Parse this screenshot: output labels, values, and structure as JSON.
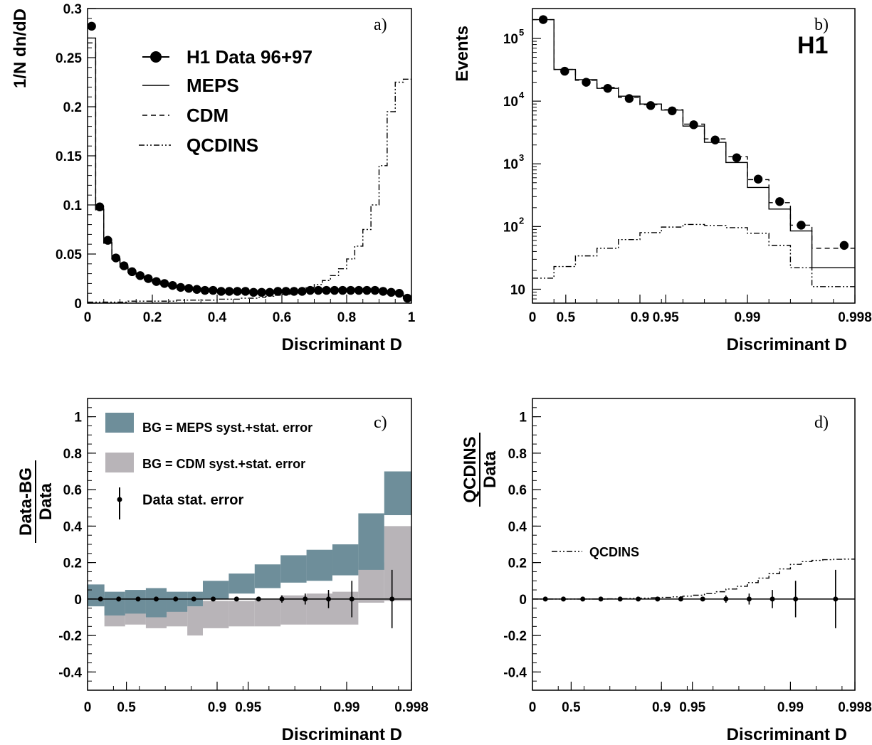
{
  "chart_data": [
    {
      "panel": "a)",
      "type": "line",
      "xlabel": "Discriminant D",
      "ylabel": "1/N dn/dD",
      "xlim": [
        0,
        1
      ],
      "ylim": [
        0,
        0.3
      ],
      "x_ticks": [
        "0",
        "0.2",
        "0.4",
        "0.6",
        "0.8",
        "1"
      ],
      "y_ticks": [
        "0",
        "0.05",
        "0.1",
        "0.15",
        "0.2",
        "0.25",
        "0.3"
      ],
      "legend": [
        "H1 Data 96+97",
        "MEPS",
        "CDM",
        "QCDINS"
      ],
      "legend_position": "top-left",
      "bin_width": 0.025,
      "series": [
        {
          "name": "H1 Data 96+97",
          "style": "points",
          "values": [
            0.282,
            0.098,
            0.064,
            0.046,
            0.038,
            0.032,
            0.028,
            0.025,
            0.022,
            0.02,
            0.018,
            0.016,
            0.015,
            0.014,
            0.013,
            0.013,
            0.012,
            0.012,
            0.012,
            0.012,
            0.011,
            0.011,
            0.011,
            0.012,
            0.012,
            0.012,
            0.012,
            0.013,
            0.013,
            0.013,
            0.013,
            0.013,
            0.013,
            0.013,
            0.013,
            0.013,
            0.012,
            0.011,
            0.01,
            0.005
          ]
        },
        {
          "name": "MEPS",
          "style": "solid",
          "values": [
            0.27,
            0.096,
            0.062,
            0.045,
            0.037,
            0.031,
            0.027,
            0.024,
            0.021,
            0.019,
            0.017,
            0.016,
            0.015,
            0.014,
            0.013,
            0.013,
            0.012,
            0.012,
            0.012,
            0.011,
            0.011,
            0.011,
            0.011,
            0.011,
            0.012,
            0.012,
            0.012,
            0.012,
            0.012,
            0.012,
            0.013,
            0.013,
            0.013,
            0.013,
            0.013,
            0.012,
            0.012,
            0.011,
            0.01,
            0.005
          ]
        },
        {
          "name": "CDM",
          "style": "dashed",
          "values": [
            0.265,
            0.095,
            0.061,
            0.045,
            0.037,
            0.031,
            0.027,
            0.024,
            0.021,
            0.019,
            0.017,
            0.016,
            0.015,
            0.014,
            0.013,
            0.013,
            0.012,
            0.012,
            0.011,
            0.011,
            0.011,
            0.011,
            0.011,
            0.011,
            0.011,
            0.012,
            0.012,
            0.012,
            0.012,
            0.012,
            0.012,
            0.013,
            0.013,
            0.013,
            0.013,
            0.012,
            0.012,
            0.011,
            0.01,
            0.005
          ]
        },
        {
          "name": "QCDINS",
          "style": "dash-dot",
          "values": [
            0.001,
            0.001,
            0.001,
            0.001,
            0.001,
            0.002,
            0.002,
            0.002,
            0.002,
            0.002,
            0.002,
            0.003,
            0.003,
            0.003,
            0.003,
            0.003,
            0.004,
            0.004,
            0.004,
            0.005,
            0.005,
            0.006,
            0.007,
            0.008,
            0.009,
            0.011,
            0.013,
            0.016,
            0.019,
            0.023,
            0.028,
            0.035,
            0.045,
            0.058,
            0.075,
            0.1,
            0.14,
            0.195,
            0.225,
            0.228
          ]
        }
      ]
    },
    {
      "panel": "b)",
      "type": "line",
      "logo": "H1",
      "xlabel": "Discriminant D",
      "ylabel": "Events",
      "y_scale": "log",
      "ylim": [
        6,
        300000
      ],
      "x_ticks": [
        "0",
        "0.5",
        "0.9",
        "0.95",
        "0.99",
        "0.998"
      ],
      "y_ticks": [
        "10",
        "10^2",
        "10^3",
        "10^4",
        "10^5"
      ],
      "n_bins": 15,
      "series": [
        {
          "name": "H1 Data 96+97",
          "style": "points",
          "values": [
            200000,
            30000,
            20000,
            16000,
            11000,
            8500,
            7000,
            4200,
            2400,
            1250,
            570,
            250,
            105,
            null,
            50
          ]
        },
        {
          "name": "MEPS",
          "style": "solid",
          "values": [
            200000,
            32000,
            22000,
            16000,
            12000,
            9000,
            7200,
            4000,
            2200,
            1050,
            420,
            190,
            85,
            22,
            22
          ]
        },
        {
          "name": "CDM",
          "style": "dashed",
          "values": [
            200000,
            32000,
            21500,
            16500,
            11500,
            8800,
            7300,
            4300,
            2500,
            1300,
            560,
            240,
            105,
            45,
            45
          ]
        },
        {
          "name": "QCDINS",
          "style": "dash-dot",
          "values": [
            15,
            23,
            34,
            45,
            62,
            80,
            98,
            108,
            104,
            96,
            78,
            50,
            22,
            11,
            11
          ]
        }
      ]
    },
    {
      "panel": "c)",
      "type": "area",
      "xlabel": "Discriminant D",
      "ylabel_num": "Data-BG",
      "ylabel_den": "Data",
      "ylim": [
        -0.5,
        1.1
      ],
      "x_ticks": [
        "0",
        "0.5",
        "0.9",
        "0.95",
        "0.99",
        "0.998"
      ],
      "y_ticks": [
        "-0.4",
        "-0.2",
        "0",
        "0.2",
        "0.4",
        "0.6",
        "0.8",
        "1"
      ],
      "band_colors": {
        "meps": "#6e8e9a",
        "cdm": "#b8b4b8"
      },
      "legend": [
        "BG = MEPS syst.+stat. error",
        "BG = CDM syst.+stat. error",
        "Data stat. error"
      ],
      "bins": [
        {
          "x0": 0.0,
          "x1": 0.65,
          "meps": [
            -0.04,
            0.08
          ],
          "cdm": [
            -0.02,
            0.03
          ]
        },
        {
          "x0": 0.65,
          "x1": 1.45,
          "meps": [
            -0.09,
            0.04
          ],
          "cdm": [
            -0.15,
            0.01
          ]
        },
        {
          "x0": 1.45,
          "x1": 2.25,
          "meps": [
            -0.08,
            0.05
          ],
          "cdm": [
            -0.14,
            0.0
          ]
        },
        {
          "x0": 2.25,
          "x1": 3.05,
          "meps": [
            -0.1,
            0.06
          ],
          "cdm": [
            -0.16,
            -0.01
          ]
        },
        {
          "x0": 3.05,
          "x1": 3.85,
          "meps": [
            -0.07,
            0.04
          ],
          "cdm": [
            -0.15,
            0.0
          ]
        },
        {
          "x0": 3.85,
          "x1": 4.45,
          "meps": [
            -0.04,
            0.04
          ],
          "cdm": [
            -0.2,
            -0.04
          ]
        },
        {
          "x0": 4.45,
          "x1": 5.45,
          "meps": [
            0.0,
            0.1
          ],
          "cdm": [
            -0.16,
            -0.01
          ]
        },
        {
          "x0": 5.45,
          "x1": 6.45,
          "meps": [
            0.03,
            0.14
          ],
          "cdm": [
            -0.15,
            -0.01
          ]
        },
        {
          "x0": 6.45,
          "x1": 7.45,
          "meps": [
            0.06,
            0.19
          ],
          "cdm": [
            -0.15,
            0.0
          ]
        },
        {
          "x0": 7.45,
          "x1": 8.45,
          "meps": [
            0.09,
            0.24
          ],
          "cdm": [
            -0.14,
            0.02
          ]
        },
        {
          "x0": 8.45,
          "x1": 9.45,
          "meps": [
            0.1,
            0.27
          ],
          "cdm": [
            -0.14,
            0.03
          ]
        },
        {
          "x0": 9.45,
          "x1": 10.45,
          "meps": [
            0.13,
            0.3
          ],
          "cdm": [
            -0.14,
            0.04
          ]
        },
        {
          "x0": 10.45,
          "x1": 11.45,
          "meps": [
            0.16,
            0.47
          ],
          "cdm": [
            -0.02,
            0.2
          ]
        },
        {
          "x0": 11.45,
          "x1": 12.5,
          "meps": [
            0.46,
            0.7
          ],
          "cdm": [
            -0.01,
            0.4
          ]
        }
      ],
      "points": [
        {
          "x": 0.5,
          "y": 0.0,
          "err": 0.0
        },
        {
          "x": 1.2,
          "y": 0.0,
          "err": 0.0
        },
        {
          "x": 1.95,
          "y": 0.0,
          "err": 0.0
        },
        {
          "x": 2.65,
          "y": 0.0,
          "err": 0.0
        },
        {
          "x": 3.4,
          "y": 0.0,
          "err": 0.0
        },
        {
          "x": 4.1,
          "y": 0.0,
          "err": 0.0
        },
        {
          "x": 4.85,
          "y": 0.0,
          "err": 0.0
        },
        {
          "x": 5.75,
          "y": 0.0,
          "err": 0.0
        },
        {
          "x": 6.6,
          "y": 0.0,
          "err": 0.01
        },
        {
          "x": 7.5,
          "y": 0.0,
          "err": 0.02
        },
        {
          "x": 8.4,
          "y": 0.0,
          "err": 0.03
        },
        {
          "x": 9.3,
          "y": 0.0,
          "err": 0.05
        },
        {
          "x": 10.2,
          "y": 0.0,
          "err": 0.1
        },
        {
          "x": 11.75,
          "y": 0.0,
          "err": 0.16
        }
      ]
    },
    {
      "panel": "d)",
      "type": "line",
      "xlabel": "Discriminant D",
      "ylabel_num": "QCDINS",
      "ylabel_den": "Data",
      "ylim": [
        -0.5,
        1.1
      ],
      "x_ticks": [
        "0",
        "0.5",
        "0.9",
        "0.95",
        "0.99",
        "0.998"
      ],
      "y_ticks": [
        "-0.4",
        "-0.2",
        "0",
        "0.2",
        "0.4",
        "0.6",
        "0.8",
        "1"
      ],
      "legend": [
        "QCDINS"
      ],
      "qcdins_step": [
        0.0,
        0.0,
        0.0,
        0.0,
        0.0,
        0.0,
        0.0,
        0.001,
        0.002,
        0.003,
        0.005,
        0.007,
        0.009,
        0.012,
        0.016,
        0.021,
        0.03,
        0.04,
        0.055,
        0.07,
        0.09,
        0.115,
        0.14,
        0.165,
        0.19,
        0.205,
        0.212,
        0.216,
        0.218,
        0.219
      ],
      "points": [
        {
          "x": 0.5,
          "y": 0.0,
          "err": 0.0
        },
        {
          "x": 1.2,
          "y": 0.0,
          "err": 0.0
        },
        {
          "x": 1.95,
          "y": 0.0,
          "err": 0.0
        },
        {
          "x": 2.65,
          "y": 0.0,
          "err": 0.0
        },
        {
          "x": 3.4,
          "y": 0.0,
          "err": 0.0
        },
        {
          "x": 4.1,
          "y": 0.0,
          "err": 0.0
        },
        {
          "x": 4.85,
          "y": 0.0,
          "err": 0.0
        },
        {
          "x": 5.75,
          "y": 0.0,
          "err": 0.0
        },
        {
          "x": 6.6,
          "y": 0.0,
          "err": 0.01
        },
        {
          "x": 7.5,
          "y": 0.0,
          "err": 0.02
        },
        {
          "x": 8.4,
          "y": 0.0,
          "err": 0.03
        },
        {
          "x": 9.3,
          "y": 0.0,
          "err": 0.05
        },
        {
          "x": 10.2,
          "y": 0.0,
          "err": 0.1
        },
        {
          "x": 11.75,
          "y": 0.0,
          "err": 0.16
        }
      ]
    }
  ]
}
